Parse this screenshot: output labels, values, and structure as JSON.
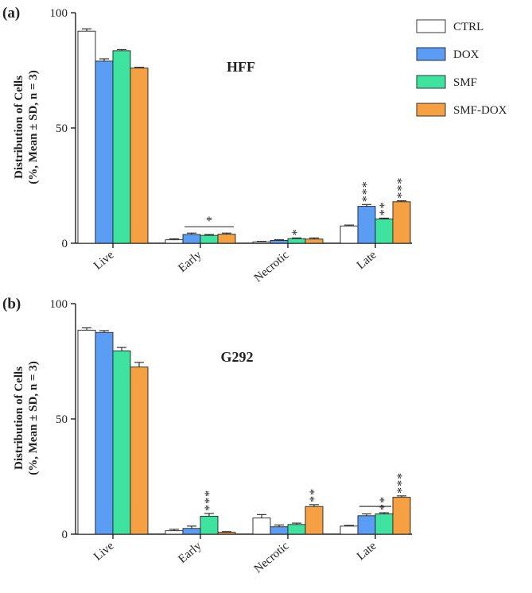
{
  "legend": [
    {
      "name": "CTRL",
      "color": "#ffffff"
    },
    {
      "name": "DOX",
      "color": "#5b9cf5"
    },
    {
      "name": "SMF",
      "color": "#3fe3a0"
    },
    {
      "name": "SMF-DOX",
      "color": "#f5a043"
    }
  ],
  "chart_data": [
    {
      "type": "bar",
      "panel_label": "(a)",
      "title": "HFF",
      "ylabel_line1": "Distribution of Cells",
      "ylabel_line2": "(%, Mean ± SD, n = 3)",
      "ylim": [
        0,
        100
      ],
      "yticks": [
        "0",
        "50",
        "100"
      ],
      "categories": [
        "Live",
        "Early",
        "Necrotic",
        "Late"
      ],
      "series": [
        {
          "name": "CTRL",
          "color": "#ffffff",
          "values": [
            92,
            1.5,
            0.6,
            7.5
          ],
          "errors": [
            1.0,
            0.4,
            0.2,
            0.4
          ]
        },
        {
          "name": "DOX",
          "color": "#5b9cf5",
          "values": [
            79,
            3.8,
            1.2,
            16.0
          ],
          "errors": [
            1.0,
            0.6,
            0.3,
            0.8
          ]
        },
        {
          "name": "SMF",
          "color": "#3fe3a0",
          "values": [
            83.5,
            3.4,
            2.0,
            10.5
          ],
          "errors": [
            0.5,
            0.4,
            0.3,
            0.4
          ]
        },
        {
          "name": "SMF-DOX",
          "color": "#f5a043",
          "values": [
            76,
            3.9,
            1.8,
            18.0
          ],
          "errors": [
            0.3,
            0.5,
            0.5,
            0.4
          ]
        }
      ],
      "annotations": [
        {
          "text": "*",
          "category": 1,
          "bracket": [
            1,
            3
          ]
        },
        {
          "text": "*",
          "category": 2,
          "series": 2
        },
        {
          "text": "***",
          "category": 3,
          "series": 1
        },
        {
          "text": "**",
          "category": 3,
          "series": 2
        },
        {
          "text": "***",
          "category": 3,
          "series": 3
        }
      ]
    },
    {
      "type": "bar",
      "panel_label": "(b)",
      "title": "G292",
      "ylabel_line1": "Distribution of Cells",
      "ylabel_line2": "(%, Mean ± SD, n = 3)",
      "ylim": [
        0,
        100
      ],
      "yticks": [
        "0",
        "50",
        "100"
      ],
      "categories": [
        "Live",
        "Early",
        "Necrotic",
        "Late"
      ],
      "series": [
        {
          "name": "CTRL",
          "color": "#ffffff",
          "values": [
            88.5,
            1.5,
            7.0,
            3.5
          ],
          "errors": [
            1.0,
            0.6,
            1.5,
            0.3
          ]
        },
        {
          "name": "DOX",
          "color": "#5b9cf5",
          "values": [
            87.5,
            2.5,
            3.2,
            8.0
          ],
          "errors": [
            0.8,
            1.0,
            0.8,
            0.8
          ]
        },
        {
          "name": "SMF",
          "color": "#3fe3a0",
          "values": [
            79.5,
            7.8,
            4.2,
            8.8
          ],
          "errors": [
            1.5,
            1.2,
            0.6,
            0.5
          ]
        },
        {
          "name": "SMF-DOX",
          "color": "#f5a043",
          "values": [
            72.5,
            0.8,
            12.0,
            16.0
          ],
          "errors": [
            2.0,
            0.3,
            0.8,
            0.6
          ]
        }
      ],
      "annotations": [
        {
          "text": "***",
          "category": 1,
          "series": 2
        },
        {
          "text": "**",
          "category": 2,
          "series": 3
        },
        {
          "text": "**",
          "category": 3,
          "series": 2,
          "bracket": [
            1,
            2
          ]
        },
        {
          "text": "***",
          "category": 3,
          "series": 3
        }
      ]
    }
  ]
}
